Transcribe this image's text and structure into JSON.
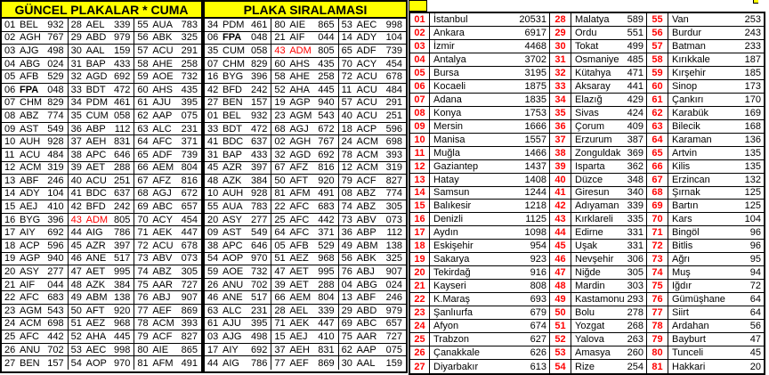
{
  "colors": {
    "header_bg": "#FFFF00",
    "highlight_red": "#FF0000",
    "grid": "#000000",
    "bg": "#FFFFFF"
  },
  "left": {
    "title": "GÜNCEL PLAKALAR * CUMA",
    "columns": [
      [
        [
          "01",
          "BEL",
          "932"
        ],
        [
          "02",
          "AGH",
          "767"
        ],
        [
          "03",
          "AJG",
          "498"
        ],
        [
          "04",
          "ABG",
          "024"
        ],
        [
          "05",
          "AFB",
          "529"
        ],
        [
          "06",
          "FPA",
          "048",
          "b"
        ],
        [
          "07",
          "CHM",
          "829"
        ],
        [
          "08",
          "ABZ",
          "774"
        ],
        [
          "09",
          "AST",
          "549"
        ],
        [
          "10",
          "AUH",
          "928"
        ],
        [
          "11",
          "ACU",
          "484"
        ],
        [
          "12",
          "ACM",
          "319"
        ],
        [
          "13",
          "ABF",
          "246"
        ],
        [
          "14",
          "ADY",
          "104"
        ],
        [
          "15",
          "AEJ",
          "410"
        ],
        [
          "16",
          "BYG",
          "396"
        ],
        [
          "17",
          "AIY",
          "692"
        ],
        [
          "18",
          "ACP",
          "596"
        ],
        [
          "19",
          "AGP",
          "940"
        ],
        [
          "20",
          "ASY",
          "277"
        ],
        [
          "21",
          "AIF",
          "044"
        ],
        [
          "22",
          "AFC",
          "683"
        ],
        [
          "23",
          "AGM",
          "543"
        ],
        [
          "24",
          "ACM",
          "698"
        ],
        [
          "25",
          "AFC",
          "442"
        ],
        [
          "26",
          "ANU",
          "702"
        ],
        [
          "27",
          "BEN",
          "157"
        ]
      ],
      [
        [
          "28",
          "AEL",
          "339"
        ],
        [
          "29",
          "ABD",
          "979"
        ],
        [
          "30",
          "AAL",
          "159"
        ],
        [
          "31",
          "BAP",
          "433"
        ],
        [
          "32",
          "AGD",
          "692"
        ],
        [
          "33",
          "BDT",
          "472"
        ],
        [
          "34",
          "PDM",
          "461"
        ],
        [
          "35",
          "CUM",
          "058"
        ],
        [
          "36",
          "ABP",
          "112"
        ],
        [
          "37",
          "AEH",
          "831"
        ],
        [
          "38",
          "APC",
          "646"
        ],
        [
          "39",
          "AET",
          "288"
        ],
        [
          "40",
          "ACU",
          "251"
        ],
        [
          "41",
          "BDC",
          "637"
        ],
        [
          "42",
          "BFD",
          "242"
        ],
        [
          "43",
          "ADM",
          "805",
          "r"
        ],
        [
          "44",
          "AIG",
          "786"
        ],
        [
          "45",
          "AZR",
          "397"
        ],
        [
          "46",
          "ANE",
          "517"
        ],
        [
          "47",
          "AET",
          "995"
        ],
        [
          "48",
          "AZK",
          "384"
        ],
        [
          "49",
          "ABM",
          "138"
        ],
        [
          "50",
          "AFT",
          "920"
        ],
        [
          "51",
          "AEZ",
          "968"
        ],
        [
          "52",
          "AHA",
          "445"
        ],
        [
          "53",
          "AEC",
          "998"
        ],
        [
          "54",
          "AOP",
          "970"
        ]
      ],
      [
        [
          "55",
          "AUA",
          "783"
        ],
        [
          "56",
          "ABK",
          "325"
        ],
        [
          "57",
          "ACU",
          "291"
        ],
        [
          "58",
          "AHE",
          "258"
        ],
        [
          "59",
          "AOE",
          "732"
        ],
        [
          "60",
          "AHS",
          "435"
        ],
        [
          "61",
          "AJU",
          "395"
        ],
        [
          "62",
          "AAP",
          "075"
        ],
        [
          "63",
          "ALC",
          "231"
        ],
        [
          "64",
          "AFC",
          "371"
        ],
        [
          "65",
          "ADF",
          "739"
        ],
        [
          "66",
          "AEM",
          "804"
        ],
        [
          "67",
          "AFZ",
          "816"
        ],
        [
          "68",
          "AGJ",
          "672"
        ],
        [
          "69",
          "ABC",
          "657"
        ],
        [
          "70",
          "ACY",
          "454"
        ],
        [
          "71",
          "AEK",
          "447"
        ],
        [
          "72",
          "ACU",
          "678"
        ],
        [
          "73",
          "ABV",
          "073"
        ],
        [
          "74",
          "ABZ",
          "305"
        ],
        [
          "75",
          "AAR",
          "727"
        ],
        [
          "76",
          "ABJ",
          "907"
        ],
        [
          "77",
          "AEF",
          "869"
        ],
        [
          "78",
          "ACM",
          "393"
        ],
        [
          "79",
          "ACF",
          "827"
        ],
        [
          "80",
          "AIE",
          "865"
        ],
        [
          "81",
          "AFM",
          "491"
        ]
      ]
    ]
  },
  "middle": {
    "title": "PLAKA SIRALAMASI",
    "columns": [
      [
        [
          "34",
          "PDM",
          "461"
        ],
        [
          "06",
          "FPA",
          "048",
          "b"
        ],
        [
          "35",
          "CUM",
          "058"
        ],
        [
          "07",
          "CHM",
          "829"
        ],
        [
          "16",
          "BYG",
          "396"
        ],
        [
          "42",
          "BFD",
          "242"
        ],
        [
          "27",
          "BEN",
          "157"
        ],
        [
          "01",
          "BEL",
          "932"
        ],
        [
          "33",
          "BDT",
          "472"
        ],
        [
          "41",
          "BDC",
          "637"
        ],
        [
          "31",
          "BAP",
          "433"
        ],
        [
          "45",
          "AZR",
          "397"
        ],
        [
          "48",
          "AZK",
          "384"
        ],
        [
          "10",
          "AUH",
          "928"
        ],
        [
          "55",
          "AUA",
          "783"
        ],
        [
          "20",
          "ASY",
          "277"
        ],
        [
          "09",
          "AST",
          "549"
        ],
        [
          "38",
          "APC",
          "646"
        ],
        [
          "54",
          "AOP",
          "970"
        ],
        [
          "59",
          "AOE",
          "732"
        ],
        [
          "26",
          "ANU",
          "702"
        ],
        [
          "46",
          "ANE",
          "517"
        ],
        [
          "63",
          "ALC",
          "231"
        ],
        [
          "61",
          "AJU",
          "395"
        ],
        [
          "03",
          "AJG",
          "498"
        ],
        [
          "17",
          "AIY",
          "692"
        ],
        [
          "44",
          "AIG",
          "786"
        ]
      ],
      [
        [
          "80",
          "AIE",
          "865"
        ],
        [
          "21",
          "AIF",
          "044"
        ],
        [
          "43",
          "ADM",
          "805",
          "r"
        ],
        [
          "60",
          "AHS",
          "435"
        ],
        [
          "58",
          "AHE",
          "258"
        ],
        [
          "52",
          "AHA",
          "445"
        ],
        [
          "19",
          "AGP",
          "940"
        ],
        [
          "23",
          "AGM",
          "543"
        ],
        [
          "68",
          "AGJ",
          "672"
        ],
        [
          "02",
          "AGH",
          "767"
        ],
        [
          "32",
          "AGD",
          "692"
        ],
        [
          "67",
          "AFZ",
          "816"
        ],
        [
          "50",
          "AFT",
          "920"
        ],
        [
          "81",
          "AFM",
          "491"
        ],
        [
          "22",
          "AFC",
          "683"
        ],
        [
          "25",
          "AFC",
          "442"
        ],
        [
          "64",
          "AFC",
          "371"
        ],
        [
          "05",
          "AFB",
          "529"
        ],
        [
          "51",
          "AEZ",
          "968"
        ],
        [
          "47",
          "AET",
          "995"
        ],
        [
          "39",
          "AET",
          "288"
        ],
        [
          "66",
          "AEM",
          "804"
        ],
        [
          "28",
          "AEL",
          "339"
        ],
        [
          "71",
          "AEK",
          "447"
        ],
        [
          "15",
          "AEJ",
          "410"
        ],
        [
          "37",
          "AEH",
          "831"
        ],
        [
          "77",
          "AEF",
          "869"
        ]
      ],
      [
        [
          "53",
          "AEC",
          "998"
        ],
        [
          "14",
          "ADY",
          "104"
        ],
        [
          "65",
          "ADF",
          "739"
        ],
        [
          "70",
          "ACY",
          "454"
        ],
        [
          "72",
          "ACU",
          "678"
        ],
        [
          "11",
          "ACU",
          "484"
        ],
        [
          "57",
          "ACU",
          "291"
        ],
        [
          "40",
          "ACU",
          "251"
        ],
        [
          "18",
          "ACP",
          "596"
        ],
        [
          "24",
          "ACM",
          "698"
        ],
        [
          "78",
          "ACM",
          "393"
        ],
        [
          "12",
          "ACM",
          "319"
        ],
        [
          "79",
          "ACF",
          "827"
        ],
        [
          "08",
          "ABZ",
          "774"
        ],
        [
          "74",
          "ABZ",
          "305"
        ],
        [
          "73",
          "ABV",
          "073"
        ],
        [
          "36",
          "ABP",
          "112"
        ],
        [
          "49",
          "ABM",
          "138"
        ],
        [
          "56",
          "ABK",
          "325"
        ],
        [
          "76",
          "ABJ",
          "907"
        ],
        [
          "04",
          "ABG",
          "024"
        ],
        [
          "13",
          "ABF",
          "246"
        ],
        [
          "29",
          "ABD",
          "979"
        ],
        [
          "69",
          "ABC",
          "657"
        ],
        [
          "75",
          "AAR",
          "727"
        ],
        [
          "62",
          "AAP",
          "075"
        ],
        [
          "30",
          "AAL",
          "159"
        ]
      ]
    ]
  },
  "right": {
    "columns": [
      [
        [
          "01",
          "İstanbul",
          "20531"
        ],
        [
          "02",
          "Ankara",
          "6917"
        ],
        [
          "03",
          "İzmir",
          "4468"
        ],
        [
          "04",
          "Antalya",
          "3702"
        ],
        [
          "05",
          "Bursa",
          "3195"
        ],
        [
          "06",
          "Kocaeli",
          "1875"
        ],
        [
          "07",
          "Adana",
          "1835"
        ],
        [
          "08",
          "Konya",
          "1753"
        ],
        [
          "09",
          "Mersin",
          "1666"
        ],
        [
          "10",
          "Manisa",
          "1557"
        ],
        [
          "11",
          "Muğla",
          "1466"
        ],
        [
          "12",
          "Gaziantep",
          "1437"
        ],
        [
          "13",
          "Hatay",
          "1408"
        ],
        [
          "14",
          "Samsun",
          "1244"
        ],
        [
          "15",
          "Balıkesir",
          "1218"
        ],
        [
          "16",
          "Denizli",
          "1125"
        ],
        [
          "17",
          "Aydın",
          "1098"
        ],
        [
          "18",
          "Eskişehir",
          "954"
        ],
        [
          "19",
          "Sakarya",
          "923"
        ],
        [
          "20",
          "Tekirdağ",
          "916"
        ],
        [
          "21",
          "Kayseri",
          "808"
        ],
        [
          "22",
          "K.Maraş",
          "693"
        ],
        [
          "23",
          "Şanlıurfa",
          "679"
        ],
        [
          "24",
          "Afyon",
          "674"
        ],
        [
          "25",
          "Trabzon",
          "627"
        ],
        [
          "26",
          "Çanakkale",
          "626"
        ],
        [
          "27",
          "Diyarbakır",
          "613"
        ]
      ],
      [
        [
          "28",
          "Malatya",
          "589"
        ],
        [
          "29",
          "Ordu",
          "551"
        ],
        [
          "30",
          "Tokat",
          "499"
        ],
        [
          "31",
          "Osmaniye",
          "485"
        ],
        [
          "32",
          "Kütahya",
          "471"
        ],
        [
          "33",
          "Aksaray",
          "441"
        ],
        [
          "34",
          "Elazığ",
          "429"
        ],
        [
          "35",
          "Sivas",
          "424"
        ],
        [
          "36",
          "Çorum",
          "409"
        ],
        [
          "37",
          "Erzurum",
          "387"
        ],
        [
          "38",
          "Zonguldak",
          "369"
        ],
        [
          "39",
          "Isparta",
          "362"
        ],
        [
          "40",
          "Düzce",
          "348"
        ],
        [
          "41",
          "Giresun",
          "340"
        ],
        [
          "42",
          "Adıyaman",
          "339"
        ],
        [
          "43",
          "Kırklareli",
          "335"
        ],
        [
          "44",
          "Edirne",
          "331"
        ],
        [
          "45",
          "Uşak",
          "331"
        ],
        [
          "46",
          "Nevşehir",
          "306"
        ],
        [
          "47",
          "Niğde",
          "305"
        ],
        [
          "48",
          "Mardin",
          "303"
        ],
        [
          "49",
          "Kastamonu",
          "293"
        ],
        [
          "50",
          "Bolu",
          "278"
        ],
        [
          "51",
          "Yozgat",
          "268"
        ],
        [
          "52",
          "Yalova",
          "263"
        ],
        [
          "53",
          "Amasya",
          "260"
        ],
        [
          "54",
          "Rize",
          "254"
        ]
      ],
      [
        [
          "55",
          "Van",
          "253"
        ],
        [
          "56",
          "Burdur",
          "243"
        ],
        [
          "57",
          "Batman",
          "233"
        ],
        [
          "58",
          "Kırıkkale",
          "187"
        ],
        [
          "59",
          "Kırşehir",
          "185"
        ],
        [
          "60",
          "Sinop",
          "173"
        ],
        [
          "61",
          "Çankırı",
          "170"
        ],
        [
          "62",
          "Karabük",
          "169"
        ],
        [
          "63",
          "Bilecik",
          "168"
        ],
        [
          "64",
          "Karaman",
          "136"
        ],
        [
          "65",
          "Artvin",
          "135"
        ],
        [
          "66",
          "Kilis",
          "135"
        ],
        [
          "67",
          "Erzincan",
          "132"
        ],
        [
          "68",
          "Şırnak",
          "125"
        ],
        [
          "69",
          "Bartın",
          "125"
        ],
        [
          "70",
          "Kars",
          "104"
        ],
        [
          "71",
          "Bingöl",
          "96"
        ],
        [
          "72",
          "Bitlis",
          "96"
        ],
        [
          "73",
          "Ağrı",
          "95"
        ],
        [
          "74",
          "Muş",
          "94"
        ],
        [
          "75",
          "Iğdır",
          "72"
        ],
        [
          "76",
          "Gümüşhane",
          "64"
        ],
        [
          "77",
          "Siirt",
          "64"
        ],
        [
          "78",
          "Ardahan",
          "56"
        ],
        [
          "79",
          "Bayburt",
          "47"
        ],
        [
          "80",
          "Tunceli",
          "45"
        ],
        [
          "81",
          "Hakkari",
          "20"
        ]
      ]
    ]
  }
}
